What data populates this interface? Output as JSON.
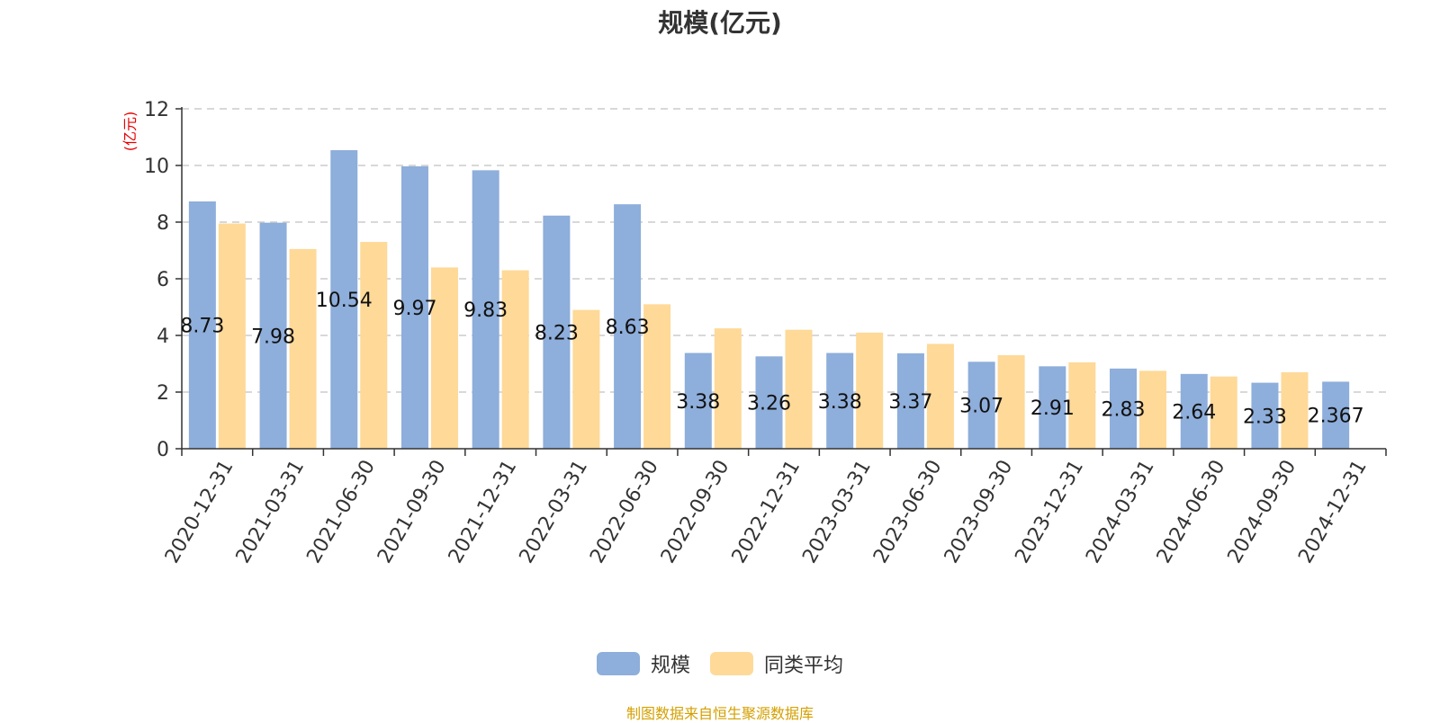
{
  "chart_data": {
    "type": "bar",
    "title": "规模(亿元)",
    "ylabel": "(亿元)",
    "xlabel": "",
    "ylim": [
      0,
      12
    ],
    "yticks": [
      0,
      2,
      4,
      6,
      8,
      10,
      12
    ],
    "grid": true,
    "legend_position": "bottom",
    "categories": [
      "2020-12-31",
      "2021-03-31",
      "2021-06-30",
      "2021-09-30",
      "2021-12-31",
      "2022-03-31",
      "2022-06-30",
      "2022-09-30",
      "2022-12-31",
      "2023-03-31",
      "2023-06-30",
      "2023-09-30",
      "2023-12-31",
      "2024-03-31",
      "2024-06-30",
      "2024-09-30",
      "2024-12-31"
    ],
    "series": [
      {
        "name": "规模",
        "color": "#8eaedb",
        "values": [
          8.73,
          7.98,
          10.54,
          9.97,
          9.83,
          8.23,
          8.63,
          3.38,
          3.26,
          3.38,
          3.37,
          3.07,
          2.91,
          2.83,
          2.64,
          2.33,
          2.367
        ],
        "labels": [
          "8.73",
          "7.98",
          "10.54",
          "9.97",
          "9.83",
          "8.23",
          "8.63",
          "3.38",
          "3.26",
          "3.38",
          "3.37",
          "3.07",
          "2.91",
          "2.83",
          "2.64",
          "2.33",
          "2.367"
        ]
      },
      {
        "name": "同类平均",
        "color": "#fed998",
        "values": [
          7.95,
          7.05,
          7.3,
          6.4,
          6.3,
          4.9,
          5.1,
          4.25,
          4.2,
          4.1,
          3.7,
          3.3,
          3.05,
          2.75,
          2.55,
          2.7,
          null
        ]
      }
    ],
    "ylabel_color": "#e60000"
  },
  "source_note": "制图数据来自恒生聚源数据库"
}
